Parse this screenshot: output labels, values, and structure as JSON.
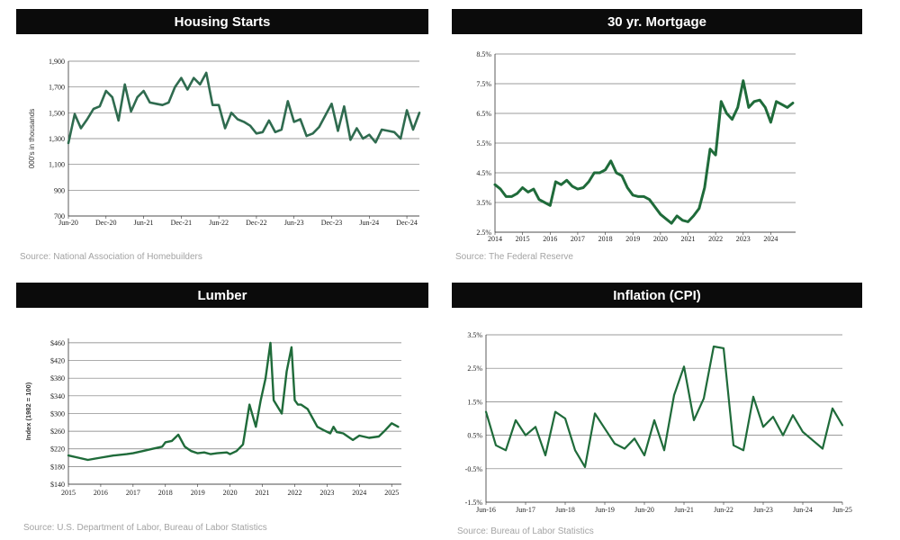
{
  "colors": {
    "line": "#2f6b4f",
    "line_dark": "#1f6b3a",
    "grid": "#7a7a7a",
    "title_bg": "#0b0b0b"
  },
  "chart_data": [
    {
      "id": "housing",
      "type": "line",
      "title": "Housing Starts",
      "source": "Source: National Association of Homebuilders",
      "ylabel": "000's in thousands",
      "ylim": [
        700,
        1900
      ],
      "yticks": [
        700,
        900,
        1100,
        1300,
        1500,
        1700,
        1900
      ],
      "ytick_labels": [
        "700",
        "900",
        "1,100",
        "1,300",
        "1,500",
        "1,700",
        "1,900"
      ],
      "xlim": [
        0,
        56
      ],
      "xticks": [
        0,
        6,
        12,
        18,
        24,
        30,
        36,
        42,
        48,
        54
      ],
      "xtick_labels": [
        "Jun-20",
        "Dec-20",
        "Jun-21",
        "Dec-21",
        "Jun-22",
        "Dec-22",
        "Jun-23",
        "Dec-23",
        "Jun-24",
        "Dec-24"
      ],
      "x": [
        0,
        1,
        2,
        3,
        4,
        5,
        6,
        7,
        8,
        9,
        10,
        11,
        12,
        13,
        14,
        15,
        16,
        17,
        18,
        19,
        20,
        21,
        22,
        23,
        24,
        25,
        26,
        27,
        28,
        29,
        30,
        31,
        32,
        33,
        34,
        35,
        36,
        37,
        38,
        39,
        40,
        41,
        42,
        43,
        44,
        45,
        46,
        47,
        48,
        49,
        50,
        51,
        52,
        53,
        54,
        55,
        56
      ],
      "values": [
        1265,
        1490,
        1380,
        1450,
        1530,
        1550,
        1670,
        1620,
        1440,
        1720,
        1510,
        1620,
        1670,
        1580,
        1570,
        1560,
        1580,
        1700,
        1770,
        1680,
        1770,
        1720,
        1810,
        1560,
        1560,
        1380,
        1500,
        1450,
        1430,
        1400,
        1340,
        1350,
        1440,
        1350,
        1370,
        1590,
        1430,
        1450,
        1320,
        1340,
        1390,
        1480,
        1570,
        1360,
        1550,
        1290,
        1380,
        1300,
        1330,
        1270,
        1370,
        1360,
        1350,
        1300,
        1520,
        1370,
        1500
      ]
    },
    {
      "id": "mortgage",
      "type": "line",
      "title": "30 yr. Mortgage",
      "source": "Source: The Federal Reserve",
      "ylim": [
        2.5,
        8.5
      ],
      "yticks": [
        2.5,
        3.5,
        4.5,
        5.5,
        6.5,
        7.5,
        8.5
      ],
      "ytick_labels": [
        "2.5%",
        "3.5%",
        "4.5%",
        "5.5%",
        "6.5%",
        "7.5%",
        "8.5%"
      ],
      "xlim": [
        2014,
        2024.9
      ],
      "xticks": [
        2014,
        2015,
        2016,
        2017,
        2018,
        2019,
        2020,
        2021,
        2022,
        2023,
        2024
      ],
      "xtick_labels": [
        "2014",
        "2015",
        "2016",
        "2017",
        "2018",
        "2019",
        "2020",
        "2021",
        "2022",
        "2023",
        "2024"
      ],
      "x": [
        2014.0,
        2014.2,
        2014.4,
        2014.6,
        2014.8,
        2015.0,
        2015.2,
        2015.4,
        2015.6,
        2015.8,
        2016.0,
        2016.2,
        2016.4,
        2016.6,
        2016.8,
        2017.0,
        2017.2,
        2017.4,
        2017.6,
        2017.8,
        2018.0,
        2018.2,
        2018.4,
        2018.6,
        2018.8,
        2019.0,
        2019.2,
        2019.4,
        2019.6,
        2019.8,
        2020.0,
        2020.2,
        2020.4,
        2020.6,
        2020.8,
        2021.0,
        2021.2,
        2021.4,
        2021.6,
        2021.8,
        2022.0,
        2022.2,
        2022.4,
        2022.6,
        2022.8,
        2023.0,
        2023.2,
        2023.4,
        2023.6,
        2023.8,
        2024.0,
        2024.2,
        2024.4,
        2024.6,
        2024.8
      ],
      "values": [
        4.1,
        3.95,
        3.7,
        3.7,
        3.8,
        4.0,
        3.85,
        3.95,
        3.6,
        3.5,
        3.4,
        4.2,
        4.1,
        4.25,
        4.05,
        3.95,
        4.0,
        4.2,
        4.5,
        4.5,
        4.6,
        4.9,
        4.5,
        4.4,
        4.0,
        3.75,
        3.7,
        3.7,
        3.6,
        3.35,
        3.1,
        2.95,
        2.8,
        3.05,
        2.9,
        2.85,
        3.05,
        3.3,
        4.0,
        5.3,
        5.1,
        6.9,
        6.5,
        6.3,
        6.7,
        7.6,
        6.7,
        6.9,
        6.95,
        6.7,
        6.2,
        6.9,
        6.8,
        6.7,
        6.85
      ]
    },
    {
      "id": "lumber",
      "type": "line",
      "title": "Lumber",
      "source": "Source:  U.S. Department of Labor, Bureau of Labor Statistics",
      "ylabel": "Index (1982 = 100)",
      "ylim": [
        140,
        470
      ],
      "yticks": [
        140,
        180,
        220,
        260,
        300,
        340,
        380,
        420,
        460
      ],
      "ytick_labels": [
        "$140",
        "$180",
        "$220",
        "$260",
        "$300",
        "$340",
        "$380",
        "$420",
        "$460"
      ],
      "xlim": [
        2015,
        2025.3
      ],
      "xticks": [
        2015,
        2016,
        2017,
        2018,
        2019,
        2020,
        2021,
        2022,
        2023,
        2024,
        2025
      ],
      "xtick_labels": [
        "2015",
        "2016",
        "2017",
        "2018",
        "2019",
        "2020",
        "2021",
        "2022",
        "2023",
        "2024",
        "2025"
      ],
      "x": [
        2015.0,
        2015.3,
        2015.6,
        2016.0,
        2016.4,
        2016.8,
        2017.0,
        2017.3,
        2017.6,
        2017.9,
        2018.0,
        2018.2,
        2018.4,
        2018.6,
        2018.8,
        2019.0,
        2019.2,
        2019.4,
        2019.6,
        2019.9,
        2020.0,
        2020.2,
        2020.4,
        2020.6,
        2020.8,
        2020.95,
        2021.1,
        2021.25,
        2021.35,
        2021.6,
        2021.75,
        2021.9,
        2022.0,
        2022.1,
        2022.2,
        2022.4,
        2022.7,
        2022.9,
        2023.1,
        2023.2,
        2023.3,
        2023.5,
        2023.8,
        2024.0,
        2024.3,
        2024.6,
        2024.8,
        2025.0,
        2025.2
      ],
      "values": [
        205,
        200,
        195,
        200,
        205,
        208,
        210,
        215,
        220,
        225,
        235,
        238,
        252,
        225,
        215,
        210,
        212,
        208,
        210,
        212,
        208,
        215,
        230,
        320,
        270,
        330,
        380,
        460,
        330,
        300,
        395,
        450,
        330,
        320,
        320,
        310,
        270,
        262,
        255,
        270,
        258,
        255,
        240,
        250,
        245,
        248,
        262,
        278,
        270
      ]
    },
    {
      "id": "cpi",
      "type": "line",
      "title": "Inflation (CPI)",
      "source": "Source: Bureau of Labor Statistics",
      "ylim": [
        -1.5,
        3.5
      ],
      "yticks": [
        -1.5,
        -0.5,
        0.5,
        1.5,
        2.5,
        3.5
      ],
      "ytick_labels": [
        "-1.5%",
        "-0.5%",
        "0.5%",
        "1.5%",
        "2.5%",
        "3.5%"
      ],
      "xlim": [
        0,
        36
      ],
      "xticks": [
        0,
        4,
        8,
        12,
        16,
        20,
        24,
        28,
        32,
        36
      ],
      "xtick_labels": [
        "Jun-16",
        "Jun-17",
        "Jun-18",
        "Jun-19",
        "Jun-20",
        "Jun-21",
        "Jun-22",
        "Jun-23",
        "Jun-24",
        "Jun-25"
      ],
      "x": [
        0,
        1,
        2,
        3,
        4,
        5,
        6,
        7,
        8,
        9,
        10,
        11,
        12,
        13,
        14,
        15,
        16,
        17,
        18,
        19,
        20,
        21,
        22,
        23,
        24,
        25,
        26,
        27,
        28,
        29,
        30,
        31,
        32,
        33,
        34,
        35,
        36
      ],
      "values": [
        1.2,
        0.2,
        0.05,
        0.95,
        0.5,
        0.75,
        -0.1,
        1.2,
        1.0,
        0.05,
        -0.45,
        1.15,
        0.7,
        0.25,
        0.1,
        0.4,
        -0.1,
        0.95,
        0.05,
        1.7,
        2.55,
        0.95,
        1.6,
        3.15,
        3.1,
        0.2,
        0.05,
        1.65,
        0.75,
        1.05,
        0.5,
        1.1,
        0.6,
        0.35,
        0.1,
        1.3,
        0.8
      ]
    }
  ]
}
